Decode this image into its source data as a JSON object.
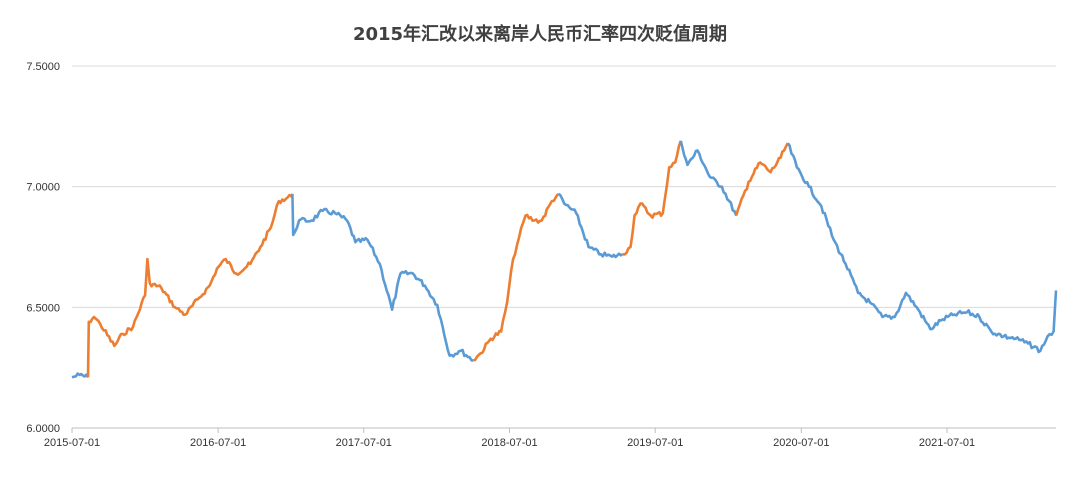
{
  "chart_data": {
    "type": "line",
    "title": "2015年汇改以来离岸人民币汇率四次贬值周期",
    "xlabel": "",
    "ylabel": "",
    "ylim": [
      6.0,
      7.5
    ],
    "yticks": [
      "6.0000",
      "6.5000",
      "7.0000",
      "7.5000"
    ],
    "xticks": [
      "2015-07-01",
      "2016-07-01",
      "2017-07-01",
      "2018-07-01",
      "2019-07-01",
      "2020-07-01",
      "2021-07-01"
    ],
    "xrange": [
      "2015-07-01",
      "2022-03-31"
    ],
    "grid": "horizontal",
    "legend": "none",
    "colors": {
      "depreciation": "#ED7D31",
      "other": "#5B9BD5",
      "grid": "#d9d9d9",
      "axis": "#bfbfbf"
    },
    "segments": [
      {
        "color": "other",
        "points": [
          [
            "2015-07-01",
            6.21
          ],
          [
            "2015-07-20",
            6.22
          ],
          [
            "2015-08-10",
            6.21
          ]
        ]
      },
      {
        "color": "depreciation",
        "points": [
          [
            "2015-08-10",
            6.21
          ],
          [
            "2015-08-12",
            6.44
          ],
          [
            "2015-08-25",
            6.46
          ],
          [
            "2015-09-10",
            6.43
          ],
          [
            "2015-10-15",
            6.34
          ],
          [
            "2015-11-05",
            6.39
          ],
          [
            "2015-12-01",
            6.42
          ],
          [
            "2015-12-31",
            6.55
          ],
          [
            "2016-01-06",
            6.7
          ],
          [
            "2016-01-12",
            6.6
          ],
          [
            "2016-02-10",
            6.58
          ],
          [
            "2016-03-15",
            6.5
          ],
          [
            "2016-04-10",
            6.47
          ],
          [
            "2016-05-15",
            6.54
          ],
          [
            "2016-06-10",
            6.59
          ],
          [
            "2016-06-28",
            6.66
          ],
          [
            "2016-07-20",
            6.7
          ],
          [
            "2016-08-15",
            6.64
          ],
          [
            "2016-09-20",
            6.68
          ],
          [
            "2016-10-15",
            6.75
          ],
          [
            "2016-11-10",
            6.83
          ],
          [
            "2016-11-30",
            6.94
          ],
          [
            "2016-12-31",
            6.96
          ],
          [
            "2017-01-03",
            6.97
          ]
        ]
      },
      {
        "color": "other",
        "points": [
          [
            "2017-01-03",
            6.97
          ],
          [
            "2017-01-05",
            6.8
          ],
          [
            "2017-01-20",
            6.86
          ],
          [
            "2017-02-20",
            6.86
          ],
          [
            "2017-03-20",
            6.9
          ],
          [
            "2017-04-20",
            6.89
          ],
          [
            "2017-05-20",
            6.86
          ],
          [
            "2017-06-10",
            6.77
          ],
          [
            "2017-07-10",
            6.78
          ],
          [
            "2017-08-10",
            6.68
          ],
          [
            "2017-09-10",
            6.49
          ],
          [
            "2017-10-01",
            6.64
          ],
          [
            "2017-11-01",
            6.64
          ],
          [
            "2017-12-01",
            6.59
          ],
          [
            "2018-01-01",
            6.51
          ],
          [
            "2018-02-01",
            6.3
          ],
          [
            "2018-03-01",
            6.32
          ],
          [
            "2018-04-01",
            6.28
          ]
        ]
      },
      {
        "color": "depreciation",
        "points": [
          [
            "2018-04-01",
            6.28
          ],
          [
            "2018-04-20",
            6.31
          ],
          [
            "2018-05-15",
            6.37
          ],
          [
            "2018-06-10",
            6.4
          ],
          [
            "2018-06-25",
            6.52
          ],
          [
            "2018-07-10",
            6.7
          ],
          [
            "2018-07-25",
            6.79
          ],
          [
            "2018-08-10",
            6.88
          ],
          [
            "2018-09-01",
            6.86
          ],
          [
            "2018-09-20",
            6.86
          ],
          [
            "2018-10-15",
            6.94
          ],
          [
            "2018-10-31",
            6.97
          ]
        ]
      },
      {
        "color": "other",
        "points": [
          [
            "2018-10-31",
            6.97
          ],
          [
            "2018-11-15",
            6.93
          ],
          [
            "2018-12-15",
            6.89
          ],
          [
            "2019-01-15",
            6.75
          ],
          [
            "2019-02-15",
            6.72
          ],
          [
            "2019-03-15",
            6.71
          ],
          [
            "2019-04-10",
            6.72
          ]
        ]
      },
      {
        "color": "depreciation",
        "points": [
          [
            "2019-04-10",
            6.72
          ],
          [
            "2019-04-30",
            6.75
          ],
          [
            "2019-05-10",
            6.88
          ],
          [
            "2019-05-25",
            6.93
          ],
          [
            "2019-06-20",
            6.88
          ],
          [
            "2019-07-20",
            6.89
          ],
          [
            "2019-08-05",
            7.08
          ],
          [
            "2019-08-20",
            7.1
          ],
          [
            "2019-09-03",
            7.19
          ]
        ]
      },
      {
        "color": "other",
        "points": [
          [
            "2019-09-03",
            7.19
          ],
          [
            "2019-09-20",
            7.09
          ],
          [
            "2019-10-15",
            7.15
          ],
          [
            "2019-11-15",
            7.04
          ],
          [
            "2019-12-15",
            7.0
          ],
          [
            "2020-01-20",
            6.88
          ]
        ]
      },
      {
        "color": "depreciation",
        "points": [
          [
            "2020-01-20",
            6.88
          ],
          [
            "2020-02-20",
            7.02
          ],
          [
            "2020-03-20",
            7.1
          ],
          [
            "2020-04-15",
            7.06
          ],
          [
            "2020-05-10",
            7.12
          ],
          [
            "2020-05-28",
            7.18
          ]
        ]
      },
      {
        "color": "other",
        "points": [
          [
            "2020-05-28",
            7.18
          ],
          [
            "2020-06-20",
            7.08
          ],
          [
            "2020-07-20",
            7.0
          ],
          [
            "2020-08-20",
            6.92
          ],
          [
            "2020-09-20",
            6.78
          ],
          [
            "2020-10-20",
            6.68
          ],
          [
            "2020-11-20",
            6.56
          ],
          [
            "2020-12-20",
            6.52
          ],
          [
            "2021-01-20",
            6.46
          ],
          [
            "2021-02-20",
            6.46
          ],
          [
            "2021-03-20",
            6.56
          ],
          [
            "2021-04-20",
            6.49
          ],
          [
            "2021-05-20",
            6.41
          ],
          [
            "2021-06-20",
            6.45
          ],
          [
            "2021-07-20",
            6.47
          ],
          [
            "2021-08-20",
            6.48
          ],
          [
            "2021-09-20",
            6.46
          ],
          [
            "2021-10-20",
            6.4
          ],
          [
            "2021-11-20",
            6.38
          ],
          [
            "2021-12-20",
            6.37
          ],
          [
            "2022-01-20",
            6.35
          ],
          [
            "2022-02-20",
            6.32
          ],
          [
            "2022-03-10",
            6.38
          ],
          [
            "2022-03-25",
            6.4
          ],
          [
            "2022-03-31",
            6.57
          ]
        ]
      }
    ]
  }
}
